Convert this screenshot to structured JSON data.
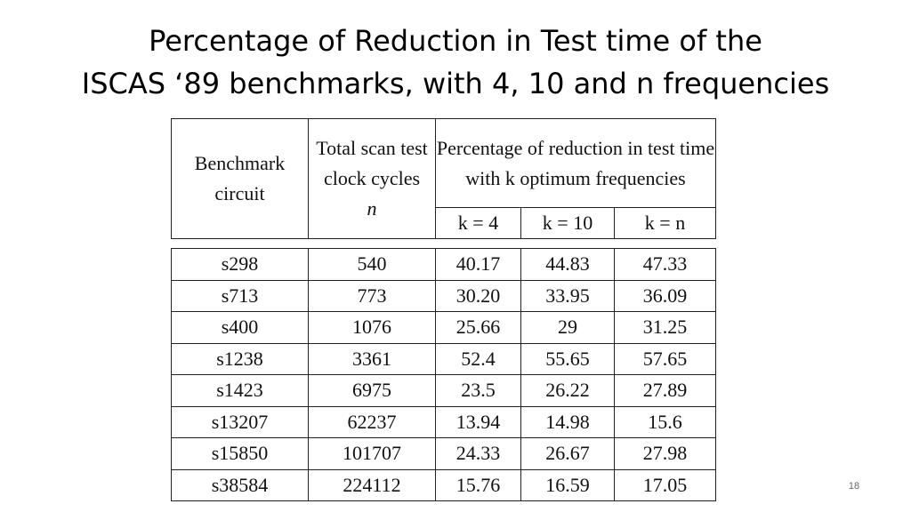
{
  "title": {
    "line1": "Percentage of Reduction in Test time of the",
    "line2": "ISCAS ‘89 benchmarks, with 4, 10 and n frequencies"
  },
  "table": {
    "headers": {
      "benchmark": "Benchmark circuit",
      "scan_cycles": "Total scan test clock cycles",
      "scan_cycles_var": "n",
      "reduction": "Percentage of reduction in test time with k optimum frequencies",
      "k_cols": [
        "k = 4",
        "k = 10",
        "k = n"
      ]
    },
    "rows": [
      {
        "circuit": "s298",
        "n": "540",
        "k4": "40.17",
        "k10": "44.83",
        "kn": "47.33"
      },
      {
        "circuit": "s713",
        "n": "773",
        "k4": "30.20",
        "k10": "33.95",
        "kn": "36.09"
      },
      {
        "circuit": "s400",
        "n": "1076",
        "k4": "25.66",
        "k10": "29",
        "kn": "31.25"
      },
      {
        "circuit": "s1238",
        "n": "3361",
        "k4": "52.4",
        "k10": "55.65",
        "kn": "57.65"
      },
      {
        "circuit": "s1423",
        "n": "6975",
        "k4": "23.5",
        "k10": "26.22",
        "kn": "27.89"
      },
      {
        "circuit": "s13207",
        "n": "62237",
        "k4": "13.94",
        "k10": "14.98",
        "kn": "15.6"
      },
      {
        "circuit": "s15850",
        "n": "101707",
        "k4": "24.33",
        "k10": "26.67",
        "kn": "27.98"
      },
      {
        "circuit": "s38584",
        "n": "224112",
        "k4": "15.76",
        "k10": "16.59",
        "kn": "17.05"
      }
    ]
  },
  "slide_number": "18"
}
